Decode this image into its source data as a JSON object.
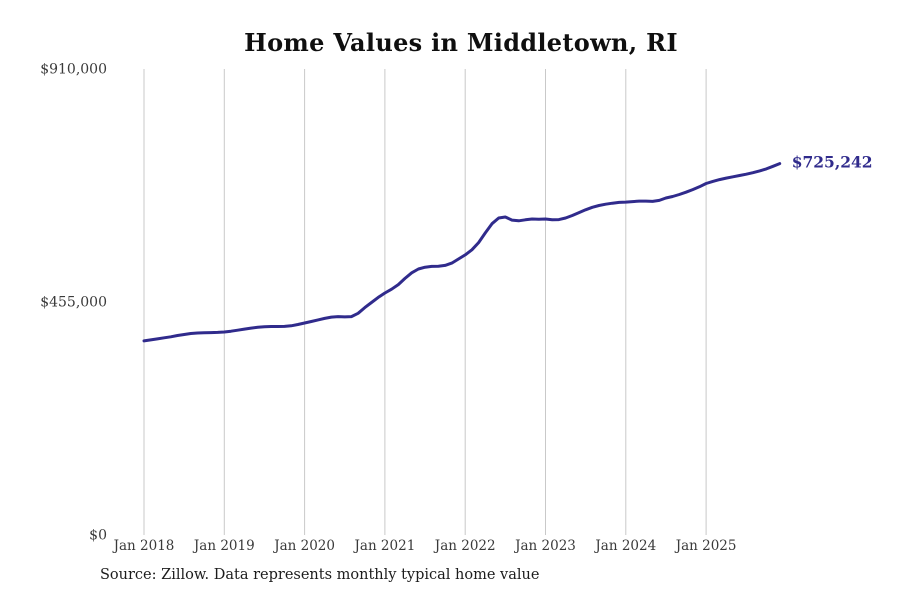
{
  "title": "Home Values in Middletown, RI",
  "source_note": "Source: Zillow. Data represents monthly typical home value",
  "colors": {
    "line": "#302b8c",
    "grid": "#c9c9c9",
    "axis_text": "#3a3a3a",
    "title_text": "#0f0f0f",
    "annotation": "#302b8c",
    "background": "#ffffff"
  },
  "chart_data": {
    "type": "line",
    "title": "Home Values in Middletown, RI",
    "xlabel": "",
    "ylabel": "",
    "ylim": [
      0,
      910000
    ],
    "grid": "vertical-yearly-only",
    "legend": "none",
    "x_tick_labels": [
      "Jan 2018",
      "Jan 2019",
      "Jan 2020",
      "Jan 2021",
      "Jan 2022",
      "Jan 2023",
      "Jan 2024",
      "Jan 2025"
    ],
    "y_ticks": [
      {
        "value": 0,
        "label": "$0"
      },
      {
        "value": 455000,
        "label": "$455,000"
      },
      {
        "value": 910000,
        "label": "$910,000"
      }
    ],
    "end_annotation": "$725,242",
    "end_value": 725242,
    "series": [
      {
        "name": "Monthly typical home value",
        "start_month": "Jan 2018",
        "end_month": "Dec 2025",
        "interval": "monthly",
        "values": [
          379000,
          381000,
          383000,
          385000,
          387000,
          389500,
          391500,
          393500,
          394500,
          395000,
          395200,
          395600,
          396500,
          398000,
          400000,
          402000,
          404000,
          405500,
          406800,
          407200,
          407200,
          407300,
          408500,
          411000,
          414000,
          417000,
          420000,
          423000,
          425500,
          426500,
          426000,
          426500,
          433000,
          444000,
          454000,
          464000,
          472500,
          480000,
          489000,
          501000,
          512000,
          519500,
          523000,
          524500,
          525000,
          526500,
          531000,
          539000,
          547000,
          557000,
          571000,
          590000,
          608000,
          619000,
          621000,
          615000,
          613500,
          615500,
          617000,
          616500,
          617000,
          615500,
          616000,
          619000,
          624000,
          629500,
          635000,
          640000,
          643500,
          646000,
          648000,
          649500,
          650000,
          651000,
          652000,
          652000,
          651500,
          653500,
          658000,
          661000,
          665000,
          669500,
          674500,
          680000,
          686500,
          690500,
          694000,
          697000,
          699500,
          702000,
          704500,
          707500,
          711000,
          715000,
          720000,
          725242
        ]
      }
    ]
  }
}
